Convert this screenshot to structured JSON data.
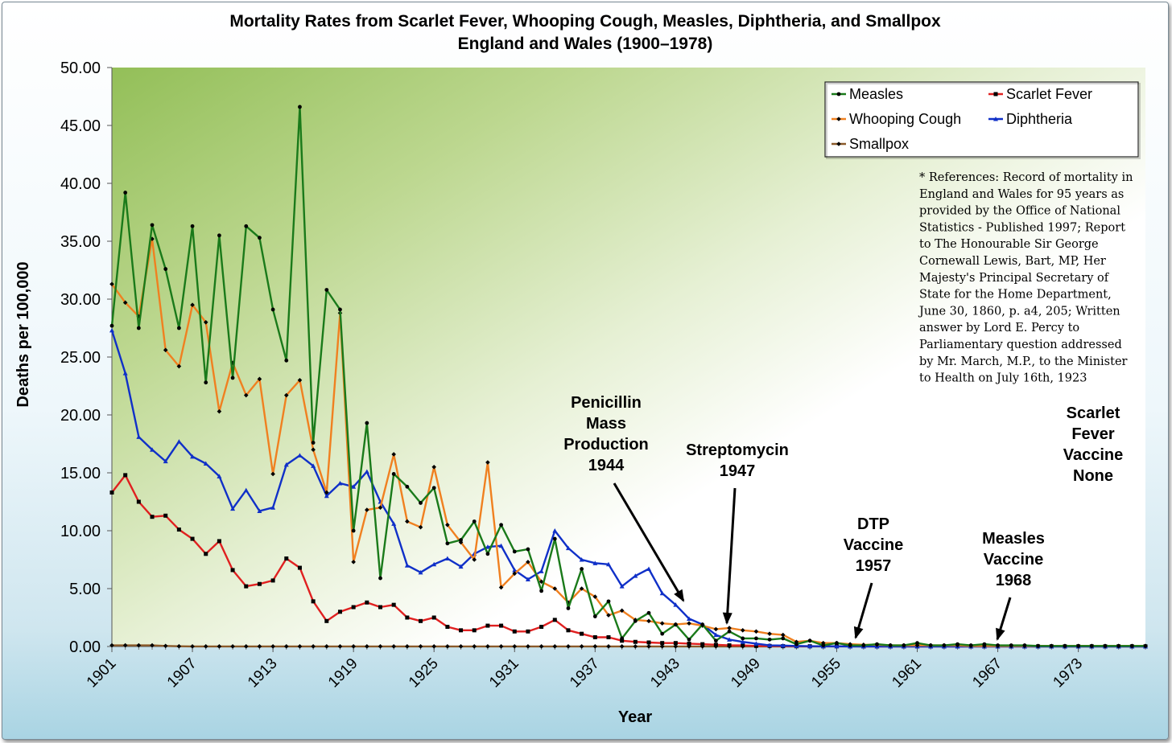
{
  "chart_data": {
    "type": "line",
    "title": "Mortality Rates from Scarlet Fever, Whooping Cough, Measles, Diphtheria, and Smallpox",
    "subtitle": "England and Wales (1900–1978)",
    "xlabel": "Year",
    "ylabel": "Deaths per 100,000",
    "ylim": [
      0,
      50
    ],
    "xlim": [
      1901,
      1978
    ],
    "yticks": [
      "0.00",
      "5.00",
      "10.00",
      "15.00",
      "20.00",
      "25.00",
      "30.00",
      "35.00",
      "40.00",
      "45.00",
      "50.00"
    ],
    "xticks": [
      "1901",
      "1907",
      "1913",
      "1919",
      "1925",
      "1931",
      "1937",
      "1943",
      "1949",
      "1955",
      "1961",
      "1967",
      "1973"
    ],
    "grid": false,
    "legend_position": "top-right",
    "legend": [
      "Measles",
      "Scarlet Fever",
      "Whooping Cough",
      "Diphtheria",
      "Smallpox"
    ],
    "years": [
      1901,
      1902,
      1903,
      1904,
      1905,
      1906,
      1907,
      1908,
      1909,
      1910,
      1911,
      1912,
      1913,
      1914,
      1915,
      1916,
      1917,
      1918,
      1919,
      1920,
      1921,
      1922,
      1923,
      1924,
      1925,
      1926,
      1927,
      1928,
      1929,
      1930,
      1931,
      1932,
      1933,
      1934,
      1935,
      1936,
      1937,
      1938,
      1939,
      1940,
      1941,
      1942,
      1943,
      1944,
      1945,
      1946,
      1947,
      1948,
      1949,
      1950,
      1951,
      1952,
      1953,
      1954,
      1955,
      1956,
      1957,
      1958,
      1959,
      1960,
      1961,
      1962,
      1963,
      1964,
      1965,
      1966,
      1967,
      1968,
      1969,
      1970,
      1971,
      1972,
      1973,
      1974,
      1975,
      1976,
      1977,
      1978
    ],
    "series": [
      {
        "name": "Measles",
        "color": "#1a7a1a",
        "marker": "circle",
        "values": [
          27.7,
          39.2,
          27.5,
          36.4,
          32.6,
          27.5,
          36.3,
          22.8,
          35.5,
          23.2,
          36.3,
          35.3,
          29.1,
          24.7,
          46.6,
          17.6,
          30.8,
          29.1,
          10.0,
          19.3,
          5.9,
          14.9,
          13.8,
          12.4,
          13.7,
          8.9,
          9.2,
          10.8,
          8.0,
          10.5,
          8.2,
          8.4,
          4.8,
          9.3,
          3.3,
          6.7,
          2.6,
          3.9,
          0.7,
          2.2,
          2.9,
          1.1,
          1.9,
          0.6,
          1.9,
          0.5,
          1.3,
          0.7,
          0.7,
          0.6,
          0.7,
          0.2,
          0.5,
          0.1,
          0.3,
          0.1,
          0.1,
          0.2,
          0.1,
          0.1,
          0.3,
          0.1,
          0.1,
          0.2,
          0.1,
          0.2,
          0.1,
          0.1,
          0.1,
          0.05,
          0.05,
          0.05,
          0.05,
          0.05,
          0.05,
          0.05,
          0.05,
          0.05
        ]
      },
      {
        "name": "Scarlet Fever",
        "color": "#e02020",
        "marker": "square",
        "values": [
          13.3,
          14.8,
          12.5,
          11.2,
          11.3,
          10.1,
          9.3,
          8.0,
          9.1,
          6.6,
          5.2,
          5.4,
          5.7,
          7.6,
          6.8,
          3.9,
          2.2,
          3.0,
          3.4,
          3.8,
          3.4,
          3.6,
          2.5,
          2.2,
          2.5,
          1.7,
          1.4,
          1.4,
          1.8,
          1.8,
          1.3,
          1.3,
          1.7,
          2.3,
          1.4,
          1.1,
          0.8,
          0.8,
          0.5,
          0.4,
          0.35,
          0.3,
          0.3,
          0.25,
          0.2,
          0.15,
          0.1,
          0.1,
          0.05,
          0.05,
          0.03,
          0.02,
          0.02,
          0.02,
          0.02,
          0.02,
          0.01,
          0.01,
          0.01,
          0.01,
          0.01,
          0.01,
          0.01,
          0.01,
          0.01,
          0.01,
          0.01,
          0.01,
          0.01,
          0.01,
          0.01,
          0.01,
          0.01,
          0.01,
          0.01,
          0.01,
          0.01,
          0.01
        ]
      },
      {
        "name": "Whooping Cough",
        "color": "#f08020",
        "marker": "diamond",
        "values": [
          31.3,
          29.7,
          28.5,
          35.2,
          25.6,
          24.2,
          29.5,
          28.0,
          20.3,
          24.5,
          21.7,
          23.1,
          14.9,
          21.7,
          23.0,
          17.0,
          13.3,
          28.8,
          7.3,
          11.8,
          12.0,
          16.6,
          10.8,
          10.3,
          15.5,
          10.5,
          9.0,
          7.5,
          15.9,
          5.1,
          6.3,
          7.3,
          5.6,
          5.0,
          3.8,
          5.0,
          4.3,
          2.7,
          3.1,
          2.3,
          2.2,
          2.0,
          1.9,
          2.0,
          1.8,
          1.5,
          1.6,
          1.4,
          1.3,
          1.1,
          1.0,
          0.4,
          0.5,
          0.3,
          0.3,
          0.2,
          0.15,
          0.15,
          0.1,
          0.1,
          0.1,
          0.1,
          0.1,
          0.1,
          0.05,
          0.05,
          0.05,
          0.05,
          0.05,
          0.05,
          0.05,
          0.05,
          0.05,
          0.05,
          0.05,
          0.05,
          0.05,
          0.05
        ]
      },
      {
        "name": "Diphtheria",
        "color": "#1030c8",
        "marker": "triangle",
        "values": [
          27.3,
          23.6,
          18.1,
          17.0,
          16.0,
          17.7,
          16.4,
          15.8,
          14.7,
          11.9,
          13.5,
          11.7,
          12.0,
          15.7,
          16.5,
          15.6,
          13.0,
          14.1,
          13.8,
          15.1,
          12.5,
          10.6,
          7.0,
          6.4,
          7.1,
          7.6,
          6.9,
          8.0,
          8.6,
          8.7,
          6.6,
          5.8,
          6.5,
          10.0,
          8.5,
          7.5,
          7.2,
          7.1,
          5.2,
          6.1,
          6.7,
          4.6,
          3.6,
          2.4,
          1.9,
          1.0,
          0.6,
          0.4,
          0.25,
          0.1,
          0.08,
          0.05,
          0.03,
          0.02,
          0.02,
          0.01,
          0.01,
          0.01,
          0.01,
          0.01,
          0.01,
          0.01,
          0.01,
          0.01,
          0.01,
          0.01,
          0.01,
          0.01,
          0.01,
          0.01,
          0.01,
          0.01,
          0.01,
          0.01,
          0.01,
          0.01,
          0.01,
          0.01
        ]
      },
      {
        "name": "Smallpox",
        "color": "#8a5a2a",
        "marker": "diamond",
        "values": [
          0.1,
          0.1,
          0.1,
          0.1,
          0.05,
          0.02,
          0.01,
          0.01,
          0.01,
          0.01,
          0.01,
          0.01,
          0.01,
          0.01,
          0.01,
          0.01,
          0.01,
          0.01,
          0.01,
          0.01,
          0.01,
          0.01,
          0.01,
          0.01,
          0.01,
          0.01,
          0.01,
          0.01,
          0.01,
          0.01,
          0.01,
          0.01,
          0.01,
          0.01,
          0.01,
          0.01,
          0.01,
          0.01,
          0.01,
          0.01,
          0.01,
          0.01,
          0.01,
          0.01,
          0.01,
          0.01,
          0.01,
          0.01,
          0.01,
          0.01,
          0.01,
          0.01,
          0.01,
          0.01,
          0.01,
          0.01,
          0.01,
          0.01,
          0.01,
          0.01,
          0.01,
          0.01,
          0.01,
          0.01,
          0.01,
          0.01,
          0.01,
          0.01,
          0.01,
          0.01,
          0.01,
          0.01,
          0.01,
          0.01,
          0.01,
          0.01,
          0.01,
          0.01
        ]
      }
    ],
    "annotations": [
      {
        "lines": [
          "Penicillin",
          "Mass",
          "Production",
          "1944"
        ],
        "year": 1944
      },
      {
        "lines": [
          "Streptomycin",
          "1947"
        ],
        "year": 1947
      },
      {
        "lines": [
          "DTP",
          "Vaccine",
          "1957"
        ],
        "year": 1957
      },
      {
        "lines": [
          "Measles",
          "Vaccine",
          "1968"
        ],
        "year": 1968
      },
      {
        "lines": [
          "Scarlet",
          "Fever",
          "Vaccine",
          "None"
        ],
        "year": null
      }
    ],
    "reference_lines": [
      "* References: Record of mortality in",
      "England and Wales for 95 years as",
      "provided by the Office of National",
      "Statistics - Published 1997; Report",
      "to The Honourable Sir George",
      "Cornewall Lewis, Bart, MP, Her",
      "Majesty's Principal Secretary of",
      "State for the Home Department,",
      "June 30, 1860, p. a4, 205; Written",
      "answer by Lord E. Percy to",
      "Parliamentary question addressed",
      "by Mr. March, M.P., to the Minister",
      "to Health on July 16th, 1923"
    ]
  }
}
